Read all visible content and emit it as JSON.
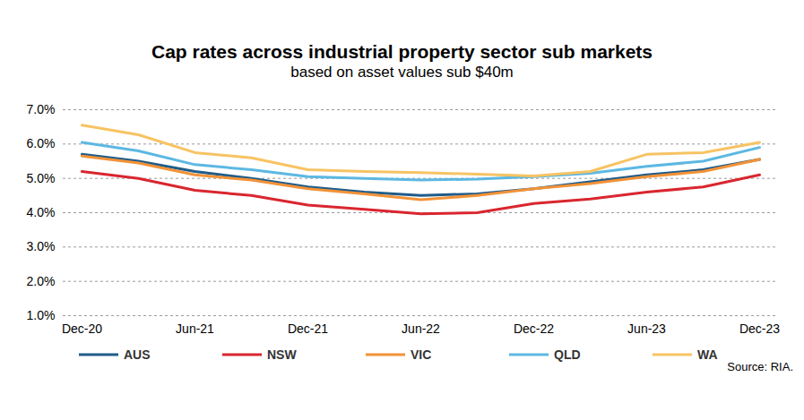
{
  "chart_data": {
    "type": "line",
    "title": "Cap rates across industrial property sector sub markets",
    "subtitle": "based on asset values sub $40m",
    "source": "Source: RIA.",
    "categories": [
      "Dec-20",
      null,
      "Jun-21",
      null,
      "Dec-21",
      null,
      "Jun-22",
      null,
      "Dec-22",
      null,
      "Jun-23",
      null,
      "Dec-23"
    ],
    "series": [
      {
        "name": "AUS",
        "color": "#1f5c8a",
        "values": [
          5.7,
          5.5,
          5.2,
          5.0,
          4.75,
          4.6,
          4.5,
          4.55,
          4.7,
          4.9,
          5.1,
          5.25,
          5.55
        ]
      },
      {
        "name": "NSW",
        "color": "#d9262f",
        "values": [
          5.2,
          5.0,
          4.65,
          4.5,
          4.22,
          4.1,
          3.97,
          4.0,
          4.27,
          4.4,
          4.6,
          4.75,
          5.1
        ]
      },
      {
        "name": "VIC",
        "color": "#f39237",
        "values": [
          5.65,
          5.45,
          5.1,
          4.95,
          4.7,
          4.55,
          4.38,
          4.5,
          4.7,
          4.85,
          5.05,
          5.2,
          5.55
        ]
      },
      {
        "name": "QLD",
        "color": "#5cb8e2",
        "values": [
          6.05,
          5.8,
          5.4,
          5.25,
          5.05,
          5.0,
          4.95,
          4.98,
          5.05,
          5.15,
          5.35,
          5.5,
          5.9
        ]
      },
      {
        "name": "WA",
        "color": "#f7c363",
        "values": [
          6.55,
          6.27,
          5.75,
          5.6,
          5.25,
          5.2,
          5.17,
          5.12,
          5.07,
          5.2,
          5.7,
          5.75,
          6.05
        ]
      }
    ],
    "ylim": [
      1,
      7
    ],
    "yticks": [
      {
        "value": 1,
        "label": "1.0%"
      },
      {
        "value": 2,
        "label": "2.0%"
      },
      {
        "value": 3,
        "label": "3.0%"
      },
      {
        "value": 4,
        "label": "4.0%"
      },
      {
        "value": 5,
        "label": "5.0%"
      },
      {
        "value": 6,
        "label": "6.0%"
      },
      {
        "value": 7,
        "label": "7.0%"
      }
    ],
    "grid": true,
    "legend": "bottom"
  }
}
